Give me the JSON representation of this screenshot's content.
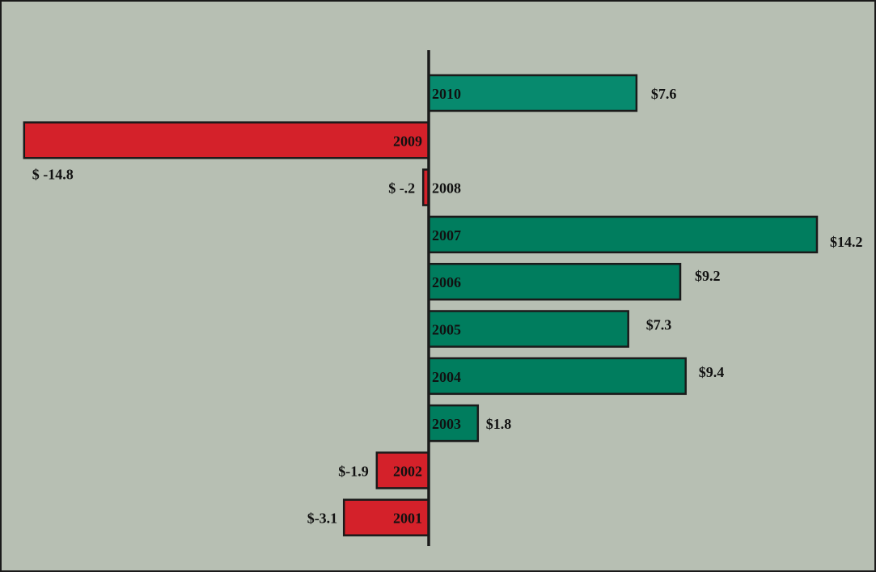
{
  "chart_data": {
    "type": "bar",
    "orientation": "horizontal",
    "categories": [
      "2010",
      "2009",
      "2008",
      "2007",
      "2006",
      "2005",
      "2004",
      "2003",
      "2002",
      "2001"
    ],
    "values": [
      7.6,
      -14.8,
      -0.2,
      14.2,
      9.2,
      7.3,
      9.4,
      1.8,
      -1.9,
      -3.1
    ],
    "value_labels": [
      "$7.6",
      "$ -14.8",
      "$ -.2",
      "$14.2",
      "$9.2",
      "$7.3",
      "$9.4",
      "$1.8",
      "$-1.9",
      "$-3.1"
    ],
    "title": "",
    "xlabel": "",
    "ylabel": "",
    "grid": false,
    "legend": "none",
    "colors": {
      "positive": "#007d5e",
      "positive_latest": "#078a6e",
      "negative": "#d4212a",
      "background": "#b7bfb3",
      "axis": "#1a1a1a"
    }
  }
}
